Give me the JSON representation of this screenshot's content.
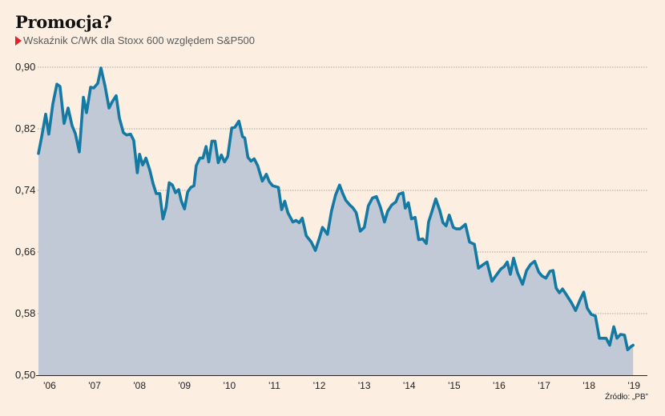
{
  "title": "Promocja?",
  "subtitle": "Wskaźnik C/WK dla Stoxx 600 względem S&P500",
  "source": "Źródło: „PB”",
  "colors": {
    "background": "#fcefe2",
    "line": "#1479a3",
    "area": "#c1c9d6",
    "marker": "#e3202a",
    "grid": "#8a8a8a"
  },
  "chart_data": {
    "type": "area",
    "title": "Promocja?",
    "subtitle": "Wskaźnik C/WK dla Stoxx 600 względem S&P500",
    "xlabel": "",
    "ylabel": "",
    "ylim": [
      0.5,
      0.9
    ],
    "xlim": [
      2006.25,
      2019.8
    ],
    "grid": true,
    "legend": "none",
    "yticks": [
      0.9,
      0.82,
      0.74,
      0.66,
      0.58,
      0.5
    ],
    "ytick_labels": [
      "0,90",
      "0,82",
      "0,74",
      "0,66",
      "0,58",
      "0,50"
    ],
    "xticks": [
      2006.5,
      2007.5,
      2008.5,
      2009.5,
      2010.5,
      2011.5,
      2012.5,
      2013.5,
      2014.5,
      2015.5,
      2016.5,
      2017.5,
      2018.5,
      2019.5
    ],
    "xtick_labels": [
      "'06",
      "'07",
      "'08",
      "'09",
      "'10",
      "'11",
      "'12",
      "'13",
      "'14",
      "'15",
      "'16",
      "'17",
      "'18",
      "'19"
    ],
    "series": [
      {
        "name": "C/WK Stoxx 600 / S&P500",
        "points": [
          [
            2006.25,
            0.788
          ],
          [
            2006.32,
            0.809
          ],
          [
            2006.41,
            0.839
          ],
          [
            2006.48,
            0.813
          ],
          [
            2006.57,
            0.852
          ],
          [
            2006.66,
            0.878
          ],
          [
            2006.73,
            0.875
          ],
          [
            2006.82,
            0.827
          ],
          [
            2006.91,
            0.847
          ],
          [
            2007.0,
            0.824
          ],
          [
            2007.07,
            0.814
          ],
          [
            2007.16,
            0.79
          ],
          [
            2007.25,
            0.861
          ],
          [
            2007.32,
            0.841
          ],
          [
            2007.41,
            0.874
          ],
          [
            2007.48,
            0.873
          ],
          [
            2007.57,
            0.879
          ],
          [
            2007.64,
            0.899
          ],
          [
            2007.73,
            0.876
          ],
          [
            2007.82,
            0.847
          ],
          [
            2007.89,
            0.855
          ],
          [
            2007.98,
            0.863
          ],
          [
            2008.05,
            0.834
          ],
          [
            2008.14,
            0.815
          ],
          [
            2008.21,
            0.812
          ],
          [
            2008.3,
            0.813
          ],
          [
            2008.37,
            0.805
          ],
          [
            2008.45,
            0.763
          ],
          [
            2008.5,
            0.787
          ],
          [
            2008.57,
            0.773
          ],
          [
            2008.64,
            0.782
          ],
          [
            2008.73,
            0.766
          ],
          [
            2008.8,
            0.749
          ],
          [
            2008.87,
            0.736
          ],
          [
            2008.95,
            0.736
          ],
          [
            2009.02,
            0.703
          ],
          [
            2009.09,
            0.718
          ],
          [
            2009.16,
            0.75
          ],
          [
            2009.23,
            0.747
          ],
          [
            2009.3,
            0.737
          ],
          [
            2009.37,
            0.741
          ],
          [
            2009.43,
            0.726
          ],
          [
            2009.5,
            0.716
          ],
          [
            2009.57,
            0.738
          ],
          [
            2009.64,
            0.744
          ],
          [
            2009.71,
            0.746
          ],
          [
            2009.76,
            0.772
          ],
          [
            2009.84,
            0.782
          ],
          [
            2009.91,
            0.782
          ],
          [
            2009.98,
            0.797
          ],
          [
            2010.04,
            0.777
          ],
          [
            2010.11,
            0.804
          ],
          [
            2010.18,
            0.804
          ],
          [
            2010.25,
            0.776
          ],
          [
            2010.32,
            0.786
          ],
          [
            2010.39,
            0.777
          ],
          [
            2010.46,
            0.784
          ],
          [
            2010.55,
            0.821
          ],
          [
            2010.62,
            0.822
          ],
          [
            2010.71,
            0.83
          ],
          [
            2010.79,
            0.81
          ],
          [
            2010.84,
            0.808
          ],
          [
            2010.91,
            0.783
          ],
          [
            2010.98,
            0.778
          ],
          [
            2011.05,
            0.781
          ],
          [
            2011.13,
            0.772
          ],
          [
            2011.23,
            0.752
          ],
          [
            2011.32,
            0.761
          ],
          [
            2011.39,
            0.751
          ],
          [
            2011.46,
            0.746
          ],
          [
            2011.59,
            0.744
          ],
          [
            2011.66,
            0.715
          ],
          [
            2011.73,
            0.726
          ],
          [
            2011.8,
            0.711
          ],
          [
            2011.91,
            0.699
          ],
          [
            2011.98,
            0.701
          ],
          [
            2012.05,
            0.698
          ],
          [
            2012.12,
            0.704
          ],
          [
            2012.21,
            0.681
          ],
          [
            2012.32,
            0.673
          ],
          [
            2012.41,
            0.662
          ],
          [
            2012.5,
            0.678
          ],
          [
            2012.57,
            0.692
          ],
          [
            2012.68,
            0.683
          ],
          [
            2012.77,
            0.713
          ],
          [
            2012.86,
            0.734
          ],
          [
            2012.95,
            0.747
          ],
          [
            2013.02,
            0.736
          ],
          [
            2013.09,
            0.727
          ],
          [
            2013.18,
            0.721
          ],
          [
            2013.25,
            0.717
          ],
          [
            2013.32,
            0.711
          ],
          [
            2013.41,
            0.687
          ],
          [
            2013.5,
            0.692
          ],
          [
            2013.59,
            0.72
          ],
          [
            2013.68,
            0.73
          ],
          [
            2013.77,
            0.732
          ],
          [
            2013.86,
            0.718
          ],
          [
            2013.95,
            0.699
          ],
          [
            2014.02,
            0.713
          ],
          [
            2014.11,
            0.721
          ],
          [
            2014.2,
            0.725
          ],
          [
            2014.27,
            0.735
          ],
          [
            2014.36,
            0.737
          ],
          [
            2014.41,
            0.717
          ],
          [
            2014.48,
            0.724
          ],
          [
            2014.55,
            0.703
          ],
          [
            2014.63,
            0.705
          ],
          [
            2014.71,
            0.676
          ],
          [
            2014.8,
            0.677
          ],
          [
            2014.88,
            0.671
          ],
          [
            2014.93,
            0.699
          ],
          [
            2015.0,
            0.712
          ],
          [
            2015.09,
            0.729
          ],
          [
            2015.18,
            0.714
          ],
          [
            2015.25,
            0.698
          ],
          [
            2015.32,
            0.694
          ],
          [
            2015.39,
            0.708
          ],
          [
            2015.48,
            0.692
          ],
          [
            2015.55,
            0.69
          ],
          [
            2015.63,
            0.69
          ],
          [
            2015.75,
            0.696
          ],
          [
            2015.84,
            0.673
          ],
          [
            2015.95,
            0.67
          ],
          [
            2016.04,
            0.639
          ],
          [
            2016.13,
            0.643
          ],
          [
            2016.23,
            0.647
          ],
          [
            2016.34,
            0.622
          ],
          [
            2016.45,
            0.631
          ],
          [
            2016.54,
            0.638
          ],
          [
            2016.61,
            0.641
          ],
          [
            2016.68,
            0.647
          ],
          [
            2016.75,
            0.631
          ],
          [
            2016.82,
            0.652
          ],
          [
            2016.91,
            0.633
          ],
          [
            2017.02,
            0.618
          ],
          [
            2017.11,
            0.636
          ],
          [
            2017.2,
            0.644
          ],
          [
            2017.29,
            0.648
          ],
          [
            2017.38,
            0.634
          ],
          [
            2017.45,
            0.629
          ],
          [
            2017.54,
            0.626
          ],
          [
            2017.63,
            0.635
          ],
          [
            2017.7,
            0.636
          ],
          [
            2017.77,
            0.613
          ],
          [
            2017.84,
            0.607
          ],
          [
            2017.91,
            0.612
          ],
          [
            2017.98,
            0.606
          ],
          [
            2018.11,
            0.594
          ],
          [
            2018.2,
            0.584
          ],
          [
            2018.3,
            0.598
          ],
          [
            2018.38,
            0.608
          ],
          [
            2018.46,
            0.587
          ],
          [
            2018.55,
            0.579
          ],
          [
            2018.64,
            0.577
          ],
          [
            2018.73,
            0.548
          ],
          [
            2018.8,
            0.548
          ],
          [
            2018.88,
            0.548
          ],
          [
            2018.96,
            0.539
          ],
          [
            2019.05,
            0.563
          ],
          [
            2019.12,
            0.548
          ],
          [
            2019.2,
            0.553
          ],
          [
            2019.29,
            0.552
          ],
          [
            2019.36,
            0.533
          ],
          [
            2019.43,
            0.537
          ],
          [
            2019.48,
            0.539
          ]
        ]
      }
    ]
  }
}
